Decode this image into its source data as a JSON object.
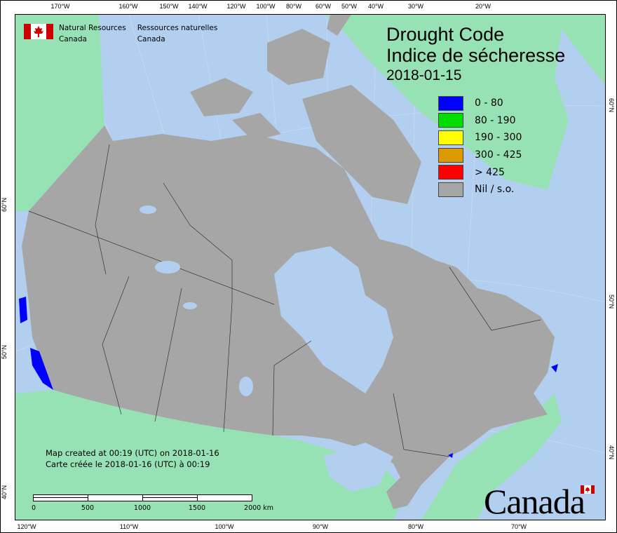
{
  "header": {
    "agency_en": [
      "Natural Resources",
      "Canada"
    ],
    "agency_fr": [
      "Ressources naturelles",
      "Canada"
    ]
  },
  "title": {
    "en": "Drought Code",
    "fr": "Indice de sécheresse",
    "date": "2018-01-15"
  },
  "legend": [
    {
      "label": "0 - 80",
      "color": "#0000ff"
    },
    {
      "label": "80 - 190",
      "color": "#00dd00"
    },
    {
      "label": "190 - 300",
      "color": "#ffff00"
    },
    {
      "label": "300 - 425",
      "color": "#dd9900"
    },
    {
      "label": "> 425",
      "color": "#ff0000"
    },
    {
      "label": "Nil / s.o.",
      "color": "#a6a6a6"
    }
  ],
  "credit": {
    "en": "Map created at 00:19 (UTC) on 2018-01-16",
    "fr": "Carte créée le 2018-01-16 (UTC) à 00:19"
  },
  "scale_bar": {
    "labels": [
      "0",
      "500",
      "1000",
      "1500",
      "2000  km"
    ]
  },
  "wordmark": "Canada",
  "graticule": {
    "top": [
      "170°W",
      "160°W",
      "150°W",
      "140°W",
      "120°W",
      "100°W",
      "80°W",
      "60°W",
      "50°W",
      "40°W",
      "30°W",
      "20°W"
    ],
    "bottom": [
      "120°W",
      "110°W",
      "100°W",
      "90°W",
      "80°W",
      "70°W"
    ],
    "left": [
      "60°N",
      "50°N",
      "40°N"
    ],
    "right": [
      "60°N",
      "50°N",
      "40°N"
    ]
  },
  "colors": {
    "water": "#b3cff0",
    "foreign_land": "#97e2b4",
    "canada_nil": "#a6a6a6"
  }
}
